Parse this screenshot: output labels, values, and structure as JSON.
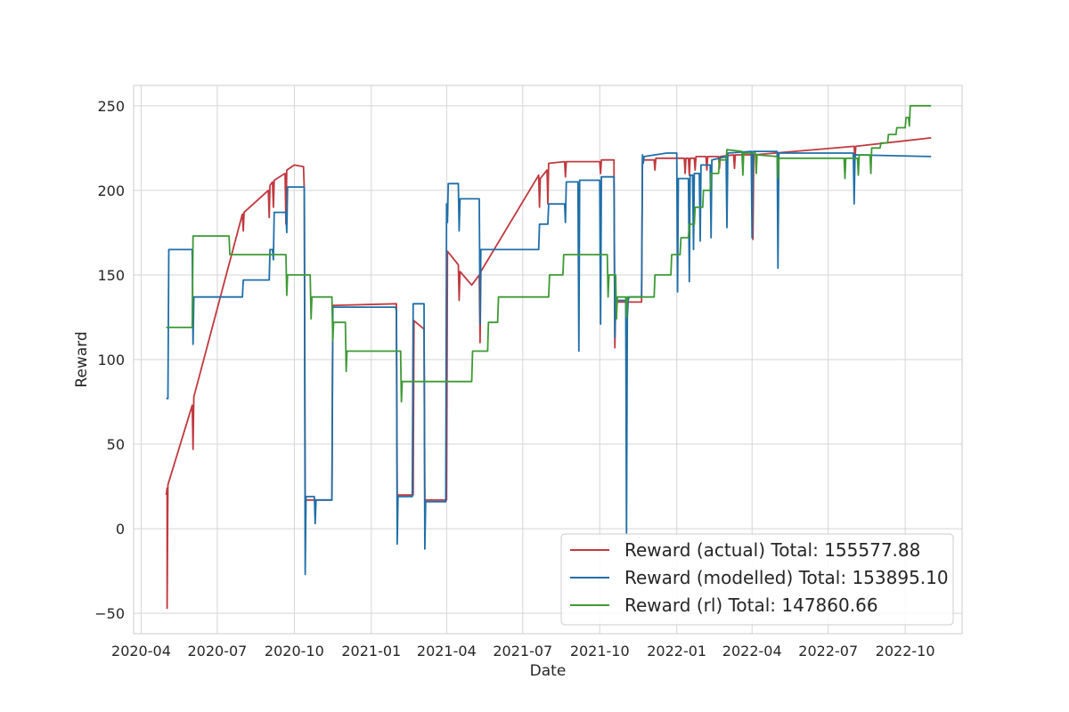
{
  "chart_data": {
    "type": "line",
    "title": "",
    "xlabel": "Date",
    "ylabel": "Reward",
    "xlim": [
      "2020-03-23",
      "2022-12-08"
    ],
    "ylim": [
      -62,
      262
    ],
    "grid": true,
    "legend_position": "lower-right",
    "x_ticks": [
      "2020-04",
      "2020-07",
      "2020-10",
      "2021-01",
      "2021-04",
      "2021-07",
      "2021-10",
      "2022-01",
      "2022-04",
      "2022-07",
      "2022-10"
    ],
    "x_tick_dates": [
      "2020-04-01",
      "2020-07-01",
      "2020-10-01",
      "2021-01-01",
      "2021-04-01",
      "2021-07-01",
      "2021-10-01",
      "2022-01-01",
      "2022-04-01",
      "2022-07-01",
      "2022-10-01"
    ],
    "y_ticks": [
      -50,
      0,
      50,
      100,
      150,
      200,
      250
    ],
    "y_tick_labels": [
      "−50",
      "0",
      "50",
      "100",
      "150",
      "200",
      "250"
    ],
    "series": [
      {
        "name": "Reward (actual) Total: 155577.88",
        "color": "#c0393f",
        "points": [
          [
            "2020-05-01",
            20
          ],
          [
            "2020-05-02",
            24
          ],
          [
            "2020-05-02",
            -47
          ],
          [
            "2020-05-03",
            26
          ],
          [
            "2020-06-01",
            73
          ],
          [
            "2020-06-02",
            47
          ],
          [
            "2020-06-03",
            78
          ],
          [
            "2020-07-31",
            186
          ],
          [
            "2020-08-01",
            176
          ],
          [
            "2020-08-02",
            187
          ],
          [
            "2020-08-31",
            200
          ],
          [
            "2020-09-01",
            184
          ],
          [
            "2020-09-02",
            203
          ],
          [
            "2020-09-05",
            205
          ],
          [
            "2020-09-06",
            190
          ],
          [
            "2020-09-07",
            206
          ],
          [
            "2020-09-20",
            210
          ],
          [
            "2020-09-21",
            180
          ],
          [
            "2020-09-22",
            212
          ],
          [
            "2020-10-01",
            215
          ],
          [
            "2020-10-12",
            214
          ],
          [
            "2020-10-13",
            200
          ],
          [
            "2020-10-14",
            17
          ],
          [
            "2020-11-15",
            17
          ],
          [
            "2020-11-16",
            132
          ],
          [
            "2021-01-31",
            133
          ],
          [
            "2021-02-01",
            20
          ],
          [
            "2021-02-20",
            20
          ],
          [
            "2021-02-21",
            123
          ],
          [
            "2021-03-05",
            118
          ],
          [
            "2021-03-06",
            17
          ],
          [
            "2021-04-01",
            17
          ],
          [
            "2021-04-02",
            164
          ],
          [
            "2021-04-15",
            156
          ],
          [
            "2021-04-16",
            135
          ],
          [
            "2021-04-17",
            152
          ],
          [
            "2021-05-01",
            144
          ],
          [
            "2021-05-10",
            150
          ],
          [
            "2021-05-11",
            110
          ],
          [
            "2021-05-12",
            152
          ],
          [
            "2021-07-20",
            209
          ],
          [
            "2021-07-21",
            190
          ],
          [
            "2021-07-22",
            207
          ],
          [
            "2021-07-30",
            212
          ],
          [
            "2021-07-31",
            192
          ],
          [
            "2021-08-01",
            216
          ],
          [
            "2021-08-20",
            217
          ],
          [
            "2021-08-21",
            208
          ],
          [
            "2021-08-22",
            217
          ],
          [
            "2021-10-01",
            217
          ],
          [
            "2021-10-02",
            210
          ],
          [
            "2021-10-03",
            218
          ],
          [
            "2021-10-18",
            218
          ],
          [
            "2021-10-19",
            107
          ],
          [
            "2021-10-20",
            134
          ],
          [
            "2021-11-20",
            134
          ],
          [
            "2021-11-21",
            218
          ],
          [
            "2021-12-05",
            218
          ],
          [
            "2021-12-06",
            212
          ],
          [
            "2021-12-07",
            219
          ],
          [
            "2022-01-10",
            219
          ],
          [
            "2022-01-11",
            210
          ],
          [
            "2022-01-12",
            219
          ],
          [
            "2022-01-15",
            219
          ],
          [
            "2022-01-16",
            209
          ],
          [
            "2022-01-17",
            219
          ],
          [
            "2022-01-22",
            219
          ],
          [
            "2022-01-23",
            212
          ],
          [
            "2022-01-24",
            220
          ],
          [
            "2022-02-05",
            220
          ],
          [
            "2022-02-06",
            212
          ],
          [
            "2022-02-07",
            220
          ],
          [
            "2022-02-20",
            220
          ],
          [
            "2022-02-21",
            213
          ],
          [
            "2022-02-22",
            220
          ],
          [
            "2022-03-10",
            221
          ],
          [
            "2022-03-11",
            213
          ],
          [
            "2022-03-12",
            221
          ],
          [
            "2022-04-01",
            221
          ],
          [
            "2022-04-02",
            171
          ],
          [
            "2022-04-03",
            221
          ],
          [
            "2022-08-01",
            226
          ],
          [
            "2022-08-02",
            219
          ],
          [
            "2022-08-03",
            226
          ],
          [
            "2022-11-01",
            231
          ]
        ]
      },
      {
        "name": "Reward (modelled) Total: 153895.10",
        "color": "#1f6fa8",
        "points": [
          [
            "2020-05-01",
            77
          ],
          [
            "2020-05-03",
            77
          ],
          [
            "2020-05-04",
            165
          ],
          [
            "2020-06-01",
            165
          ],
          [
            "2020-06-02",
            109
          ],
          [
            "2020-06-03",
            137
          ],
          [
            "2020-07-31",
            137
          ],
          [
            "2020-08-01",
            147
          ],
          [
            "2020-09-01",
            147
          ],
          [
            "2020-09-02",
            165
          ],
          [
            "2020-09-05",
            165
          ],
          [
            "2020-09-06",
            159
          ],
          [
            "2020-09-07",
            187
          ],
          [
            "2020-09-21",
            187
          ],
          [
            "2020-09-22",
            175
          ],
          [
            "2020-09-23",
            202
          ],
          [
            "2020-10-13",
            202
          ],
          [
            "2020-10-14",
            -27
          ],
          [
            "2020-10-15",
            19
          ],
          [
            "2020-10-25",
            19
          ],
          [
            "2020-10-26",
            3
          ],
          [
            "2020-10-27",
            17
          ],
          [
            "2020-11-15",
            17
          ],
          [
            "2020-11-16",
            131
          ],
          [
            "2021-01-30",
            131
          ],
          [
            "2021-01-31",
            129
          ],
          [
            "2021-02-01",
            -9
          ],
          [
            "2021-02-02",
            19
          ],
          [
            "2021-02-19",
            19
          ],
          [
            "2021-02-20",
            133
          ],
          [
            "2021-03-05",
            133
          ],
          [
            "2021-03-06",
            -12
          ],
          [
            "2021-03-07",
            16
          ],
          [
            "2021-03-31",
            16
          ],
          [
            "2021-04-01",
            192
          ],
          [
            "2021-04-02",
            181
          ],
          [
            "2021-04-03",
            204
          ],
          [
            "2021-04-15",
            204
          ],
          [
            "2021-04-16",
            176
          ],
          [
            "2021-04-17",
            195
          ],
          [
            "2021-05-10",
            195
          ],
          [
            "2021-05-11",
            121
          ],
          [
            "2021-05-12",
            165
          ],
          [
            "2021-07-20",
            165
          ],
          [
            "2021-07-21",
            180
          ],
          [
            "2021-07-31",
            180
          ],
          [
            "2021-08-01",
            192
          ],
          [
            "2021-08-20",
            192
          ],
          [
            "2021-08-21",
            181
          ],
          [
            "2021-08-22",
            205
          ],
          [
            "2021-09-05",
            205
          ],
          [
            "2021-09-06",
            105
          ],
          [
            "2021-09-07",
            206
          ],
          [
            "2021-10-01",
            206
          ],
          [
            "2021-10-02",
            121
          ],
          [
            "2021-10-03",
            208
          ],
          [
            "2021-10-18",
            208
          ],
          [
            "2021-10-19",
            113
          ],
          [
            "2021-10-20",
            135
          ],
          [
            "2021-11-01",
            135
          ],
          [
            "2021-11-02",
            -3
          ],
          [
            "2021-11-03",
            125
          ],
          [
            "2021-11-04",
            135
          ],
          [
            "2021-11-05",
            137
          ],
          [
            "2021-11-20",
            137
          ],
          [
            "2021-11-21",
            221
          ],
          [
            "2021-11-22",
            216
          ],
          [
            "2021-11-23",
            220
          ],
          [
            "2021-12-20",
            222
          ],
          [
            "2022-01-01",
            222
          ],
          [
            "2022-01-02",
            140
          ],
          [
            "2022-01-03",
            207
          ],
          [
            "2022-01-15",
            207
          ],
          [
            "2022-01-16",
            146
          ],
          [
            "2022-01-17",
            209
          ],
          [
            "2022-01-20",
            209
          ],
          [
            "2022-01-21",
            165
          ],
          [
            "2022-01-22",
            210
          ],
          [
            "2022-01-28",
            210
          ],
          [
            "2022-01-29",
            170
          ],
          [
            "2022-01-30",
            215
          ],
          [
            "2022-02-10",
            215
          ],
          [
            "2022-02-11",
            172
          ],
          [
            "2022-02-12",
            218
          ],
          [
            "2022-03-01",
            220
          ],
          [
            "2022-03-02",
            178
          ],
          [
            "2022-03-03",
            222
          ],
          [
            "2022-03-31",
            223
          ],
          [
            "2022-04-01",
            172
          ],
          [
            "2022-04-02",
            223
          ],
          [
            "2022-05-01",
            223
          ],
          [
            "2022-05-02",
            154
          ],
          [
            "2022-05-03",
            222
          ],
          [
            "2022-07-31",
            222
          ],
          [
            "2022-08-01",
            192
          ],
          [
            "2022-08-02",
            221
          ],
          [
            "2022-11-01",
            220
          ]
        ]
      },
      {
        "name": "Reward (rl) Total: 147860.66",
        "color": "#3d9a34",
        "points": [
          [
            "2020-05-01",
            119
          ],
          [
            "2020-06-01",
            119
          ],
          [
            "2020-06-02",
            173
          ],
          [
            "2020-07-15",
            173
          ],
          [
            "2020-07-16",
            162
          ],
          [
            "2020-09-21",
            162
          ],
          [
            "2020-09-22",
            138
          ],
          [
            "2020-09-23",
            150
          ],
          [
            "2020-10-20",
            150
          ],
          [
            "2020-10-21",
            124
          ],
          [
            "2020-10-22",
            137
          ],
          [
            "2020-11-15",
            137
          ],
          [
            "2020-11-16",
            111
          ],
          [
            "2020-11-17",
            122
          ],
          [
            "2020-12-01",
            122
          ],
          [
            "2020-12-02",
            93
          ],
          [
            "2020-12-03",
            105
          ],
          [
            "2021-02-05",
            105
          ],
          [
            "2021-02-06",
            75
          ],
          [
            "2021-02-07",
            87
          ],
          [
            "2021-05-01",
            87
          ],
          [
            "2021-05-02",
            105
          ],
          [
            "2021-05-20",
            105
          ],
          [
            "2021-05-21",
            122
          ],
          [
            "2021-06-01",
            122
          ],
          [
            "2021-06-02",
            137
          ],
          [
            "2021-08-01",
            137
          ],
          [
            "2021-08-02",
            150
          ],
          [
            "2021-08-18",
            150
          ],
          [
            "2021-08-19",
            162
          ],
          [
            "2021-10-10",
            162
          ],
          [
            "2021-10-11",
            137
          ],
          [
            "2021-10-12",
            150
          ],
          [
            "2021-10-20",
            150
          ],
          [
            "2021-10-21",
            124
          ],
          [
            "2021-10-22",
            137
          ],
          [
            "2021-11-01",
            137
          ],
          [
            "2021-11-02",
            125
          ],
          [
            "2021-11-03",
            137
          ],
          [
            "2021-12-05",
            137
          ],
          [
            "2021-12-06",
            150
          ],
          [
            "2021-12-25",
            150
          ],
          [
            "2021-12-26",
            162
          ],
          [
            "2022-01-05",
            162
          ],
          [
            "2022-01-06",
            172
          ],
          [
            "2022-01-15",
            172
          ],
          [
            "2022-01-16",
            180
          ],
          [
            "2022-01-22",
            180
          ],
          [
            "2022-01-23",
            190
          ],
          [
            "2022-02-01",
            190
          ],
          [
            "2022-02-02",
            200
          ],
          [
            "2022-02-10",
            200
          ],
          [
            "2022-02-11",
            210
          ],
          [
            "2022-02-20",
            210
          ],
          [
            "2022-02-21",
            218
          ],
          [
            "2022-03-01",
            218
          ],
          [
            "2022-03-02",
            224
          ],
          [
            "2022-03-20",
            223
          ],
          [
            "2022-03-21",
            209
          ],
          [
            "2022-03-22",
            222
          ],
          [
            "2022-04-05",
            222
          ],
          [
            "2022-04-06",
            210
          ],
          [
            "2022-04-07",
            221
          ],
          [
            "2022-05-01",
            220
          ],
          [
            "2022-05-02",
            207
          ],
          [
            "2022-05-03",
            219
          ],
          [
            "2022-07-20",
            219
          ],
          [
            "2022-07-21",
            207
          ],
          [
            "2022-07-22",
            219
          ],
          [
            "2022-08-05",
            219
          ],
          [
            "2022-08-06",
            209
          ],
          [
            "2022-08-07",
            221
          ],
          [
            "2022-08-20",
            221
          ],
          [
            "2022-08-21",
            210
          ],
          [
            "2022-08-22",
            225
          ],
          [
            "2022-09-01",
            225
          ],
          [
            "2022-09-02",
            228
          ],
          [
            "2022-09-10",
            228
          ],
          [
            "2022-09-11",
            233
          ],
          [
            "2022-09-20",
            233
          ],
          [
            "2022-09-21",
            237
          ],
          [
            "2022-10-01",
            237
          ],
          [
            "2022-10-02",
            243
          ],
          [
            "2022-10-05",
            243
          ],
          [
            "2022-10-06",
            238
          ],
          [
            "2022-10-07",
            250
          ],
          [
            "2022-11-01",
            250
          ]
        ]
      }
    ]
  }
}
